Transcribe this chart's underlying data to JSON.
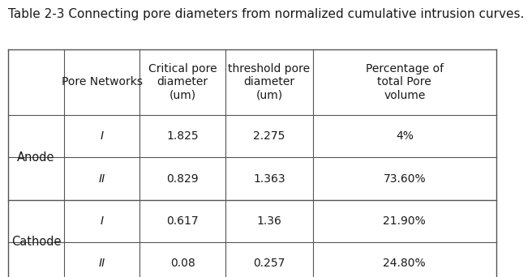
{
  "title": "Table 2-3 Connecting pore diameters from normalized cumulative intrusion curves.",
  "col_headers": [
    "",
    "Pore Networks",
    "Critical pore\ndiameter\n(um)",
    "threshold pore\ndiameter\n(um)",
    "Percentage of\ntotal Pore\nvolume"
  ],
  "row_groups": [
    {
      "group_label": "Anode",
      "rows": [
        [
          "I",
          "1.825",
          "2.275",
          "4%"
        ],
        [
          "II",
          "0.829",
          "1.363",
          "73.60%"
        ]
      ]
    },
    {
      "group_label": "Cathode",
      "rows": [
        [
          "I",
          "0.617",
          "1.36",
          "21.90%"
        ],
        [
          "II",
          "0.08",
          "0.257",
          "24.80%"
        ]
      ]
    }
  ],
  "bg_color": "#ffffff",
  "text_color": "#1a1a1a",
  "line_color": "#555555",
  "title_fontsize": 11,
  "header_fontsize": 10,
  "cell_fontsize": 10,
  "group_fontsize": 10.5
}
